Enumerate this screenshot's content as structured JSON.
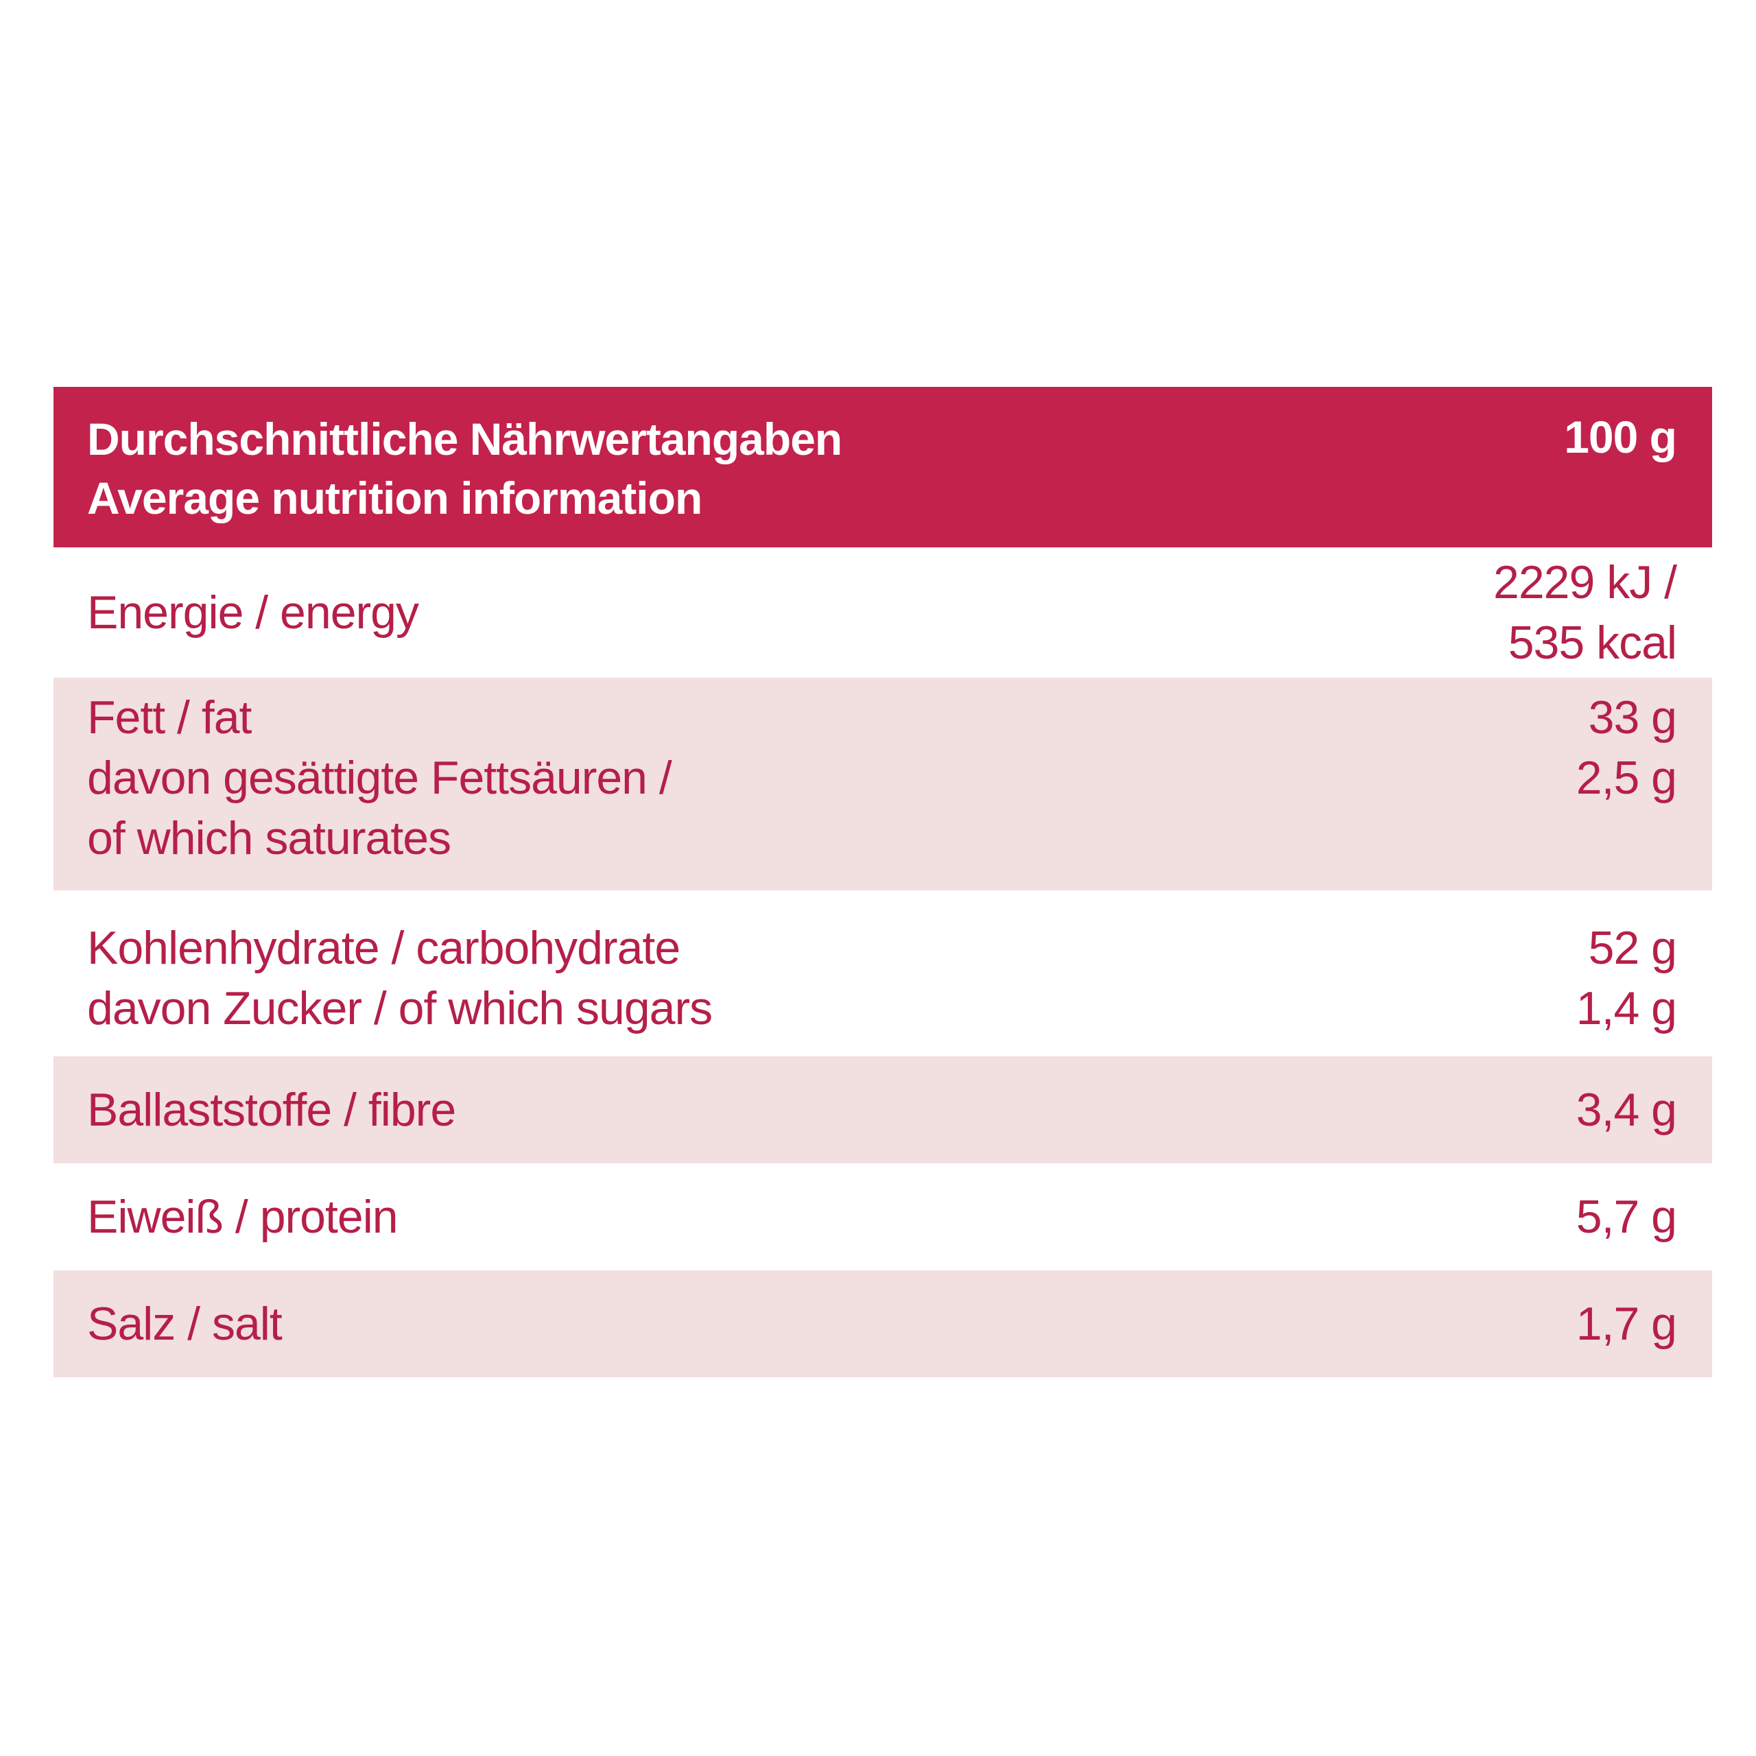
{
  "colors": {
    "header_bg": "#c3224c",
    "header_text": "#ffffff",
    "text": "#b51f48",
    "stripe_bg": "#f2dfe0",
    "plain_bg": "#ffffff"
  },
  "table": {
    "header": {
      "title_de": "Durchschnittliche Nährwertangaben",
      "title_en": "Average nutrition information",
      "per": "100 g"
    },
    "rows": [
      {
        "labels": [
          "Energie / energy"
        ],
        "values": [
          "2229 kJ /",
          "535 kcal"
        ]
      },
      {
        "labels": [
          "Fett / fat",
          "davon gesättigte Fettsäuren /",
          "of which saturates"
        ],
        "values": [
          "33 g",
          "2,5 g"
        ]
      },
      {
        "labels": [
          "Kohlenhydrate / carbohydrate",
          "davon Zucker / of which sugars"
        ],
        "values": [
          "52 g",
          "1,4 g"
        ]
      },
      {
        "labels": [
          "Ballaststoffe / fibre"
        ],
        "values": [
          "3,4 g"
        ]
      },
      {
        "labels": [
          "Eiweiß / protein"
        ],
        "values": [
          "5,7 g"
        ]
      },
      {
        "labels": [
          "Salz / salt"
        ],
        "values": [
          "1,7 g"
        ]
      }
    ]
  }
}
